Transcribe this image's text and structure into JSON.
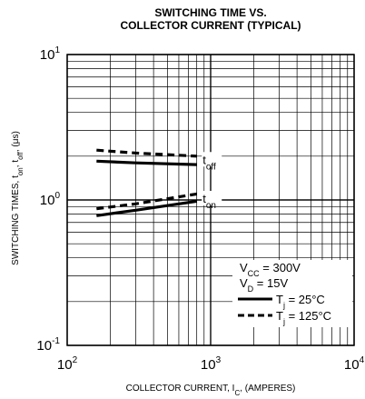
{
  "chart_data": {
    "type": "line",
    "title_line1": "SWITCHING TIME VS.",
    "title_line2": "COLLECTOR CURRENT (TYPICAL)",
    "xlabel": {
      "prefix": "COLLECTOR CURRENT, I",
      "sub": "C",
      "suffix": ", (AMPERES)"
    },
    "ylabel": {
      "p1": "SWITCHING TIMES, t",
      "s1": "on",
      "p2": ", t",
      "s2": "off",
      "p3": ", (μs)"
    },
    "x_scale": "log",
    "y_scale": "log",
    "xlim": [
      100,
      10000
    ],
    "ylim": [
      0.1,
      10
    ],
    "x_ticks": [
      {
        "base": "10",
        "exp": "2"
      },
      {
        "base": "10",
        "exp": "3"
      },
      {
        "base": "10",
        "exp": "4"
      }
    ],
    "y_ticks": [
      {
        "base": "10",
        "exp": "1"
      },
      {
        "base": "10",
        "exp": "0"
      },
      {
        "base": "10",
        "exp": "-1"
      }
    ],
    "grid": true,
    "series": [
      {
        "label_main": "t",
        "label_sub": "off",
        "style": "solid",
        "points": [
          [
            160,
            1.85
          ],
          [
            300,
            1.8
          ],
          [
            800,
            1.75
          ]
        ]
      },
      {
        "label_main": "t",
        "label_sub": "off",
        "style": "dashed",
        "points": [
          [
            160,
            2.2
          ],
          [
            300,
            2.1
          ],
          [
            800,
            2.0
          ]
        ]
      },
      {
        "label_main": "t",
        "label_sub": "on",
        "style": "solid",
        "points": [
          [
            160,
            0.78
          ],
          [
            300,
            0.85
          ],
          [
            800,
            0.98
          ]
        ]
      },
      {
        "label_main": "t",
        "label_sub": "on",
        "style": "dashed",
        "points": [
          [
            160,
            0.87
          ],
          [
            300,
            0.94
          ],
          [
            800,
            1.1
          ]
        ]
      }
    ],
    "curve_labels": [
      {
        "main": "t",
        "sub": "off",
        "at": [
          880,
          1.85
        ]
      },
      {
        "main": "t",
        "sub": "on",
        "at": [
          880,
          1.0
        ]
      }
    ],
    "legend": {
      "placement": "bottom-right",
      "conditions": [
        {
          "main": "V",
          "sub": "CC",
          "rest": " = 300V"
        },
        {
          "main": "V",
          "sub": "D",
          "rest": " = 15V"
        }
      ],
      "entries": [
        {
          "style": "solid",
          "main": "T",
          "sub": "j",
          "rest": " = 25°C"
        },
        {
          "style": "dashed",
          "main": "T",
          "sub": "j",
          "rest": " = 125°C"
        }
      ]
    }
  }
}
